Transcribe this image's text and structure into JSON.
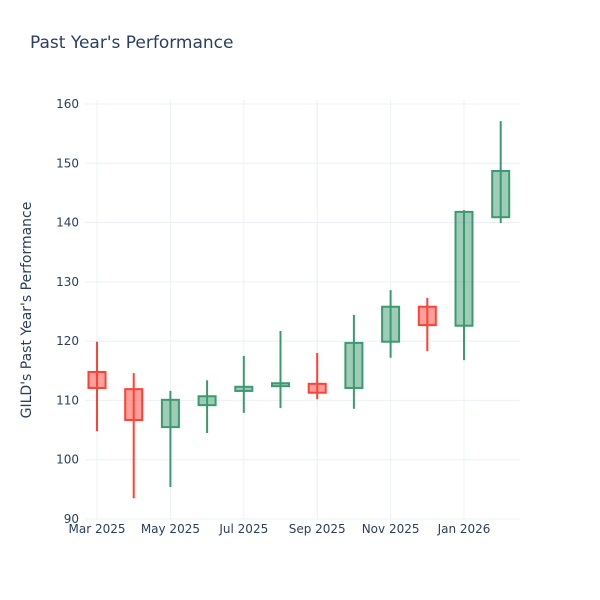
{
  "chart_data": {
    "type": "candlestick",
    "title": "Past Year's Performance",
    "xlabel": "",
    "ylabel": "GILD's Past Year's Performance",
    "ylim": [
      90,
      161
    ],
    "yticks": [
      90,
      100,
      110,
      120,
      130,
      140,
      150,
      160
    ],
    "xticks": [
      {
        "label": "Mar 2025",
        "index": 0
      },
      {
        "label": "May 2025",
        "index": 2
      },
      {
        "label": "Jul 2025",
        "index": 4
      },
      {
        "label": "Sep 2025",
        "index": 6
      },
      {
        "label": "Nov 2025",
        "index": 8
      },
      {
        "label": "Jan 2026",
        "index": 10
      }
    ],
    "grid": true,
    "increasing_color": "#3d9970",
    "decreasing_color": "#ff4136",
    "candles": [
      {
        "month": "2025-03",
        "open": 114.8,
        "high": 119.9,
        "low": 104.8,
        "close": 112.1
      },
      {
        "month": "2025-04",
        "open": 111.9,
        "high": 114.6,
        "low": 93.5,
        "close": 106.7
      },
      {
        "month": "2025-05",
        "open": 105.5,
        "high": 111.6,
        "low": 95.4,
        "close": 110.1
      },
      {
        "month": "2025-06",
        "open": 109.2,
        "high": 113.4,
        "low": 104.5,
        "close": 110.7
      },
      {
        "month": "2025-07",
        "open": 111.6,
        "high": 117.5,
        "low": 107.9,
        "close": 112.3
      },
      {
        "month": "2025-08",
        "open": 112.4,
        "high": 121.7,
        "low": 108.7,
        "close": 112.9
      },
      {
        "month": "2025-09",
        "open": 112.8,
        "high": 118.0,
        "low": 110.2,
        "close": 111.3
      },
      {
        "month": "2025-10",
        "open": 112.1,
        "high": 124.4,
        "low": 108.6,
        "close": 119.7
      },
      {
        "month": "2025-11",
        "open": 119.9,
        "high": 128.6,
        "low": 117.2,
        "close": 125.8
      },
      {
        "month": "2025-12",
        "open": 125.8,
        "high": 127.3,
        "low": 118.3,
        "close": 122.7
      },
      {
        "month": "2026-01",
        "open": 122.6,
        "high": 142.1,
        "low": 116.8,
        "close": 141.8
      },
      {
        "month": "2026-02",
        "open": 140.9,
        "high": 157.1,
        "low": 139.9,
        "close": 148.7
      }
    ]
  }
}
